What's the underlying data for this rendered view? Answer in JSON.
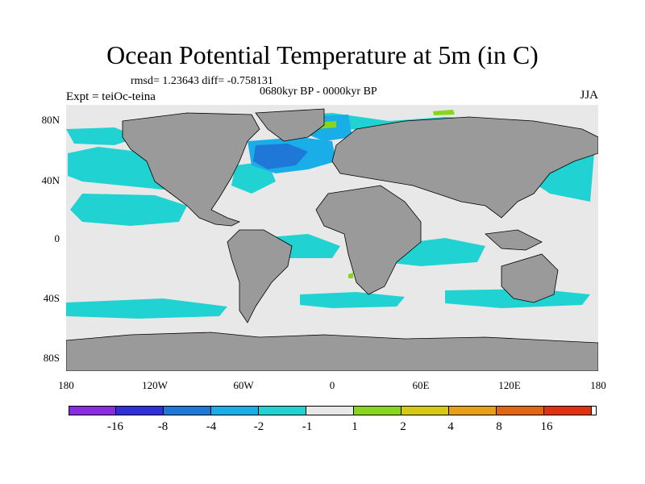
{
  "title": "Ocean Potential Temperature at 5m (in C)",
  "stats": "rmsd= 1.23643  diff= -0.758131",
  "period": "0680kyr BP - 0000kyr BP",
  "experiment": "Expt = teiOc-teina",
  "season": "JJA",
  "y_ticks": [
    "80N",
    "40N",
    "0",
    "40S",
    "80S"
  ],
  "x_ticks": [
    "180",
    "120W",
    "60W",
    "0",
    "60E",
    "120E",
    "180"
  ],
  "colorbar": {
    "labels": [
      "-16",
      "-8",
      "-4",
      "-2",
      "-1",
      "1",
      "2",
      "4",
      "8",
      "16"
    ],
    "colors": [
      "#8a2be2",
      "#3030d8",
      "#1f78d8",
      "#19aee8",
      "#20d2d2",
      "#e8e8e8",
      "#86d61e",
      "#d6c814",
      "#e6a018",
      "#e06614",
      "#e03010"
    ]
  },
  "map_colors": {
    "land": "#9a9a9a",
    "ocean_neutral": "#e8e8e8",
    "anom_m1": "#20d2d2",
    "anom_m2": "#19aee8",
    "anom_m4": "#1f78d8",
    "anom_p1": "#86d61e"
  }
}
